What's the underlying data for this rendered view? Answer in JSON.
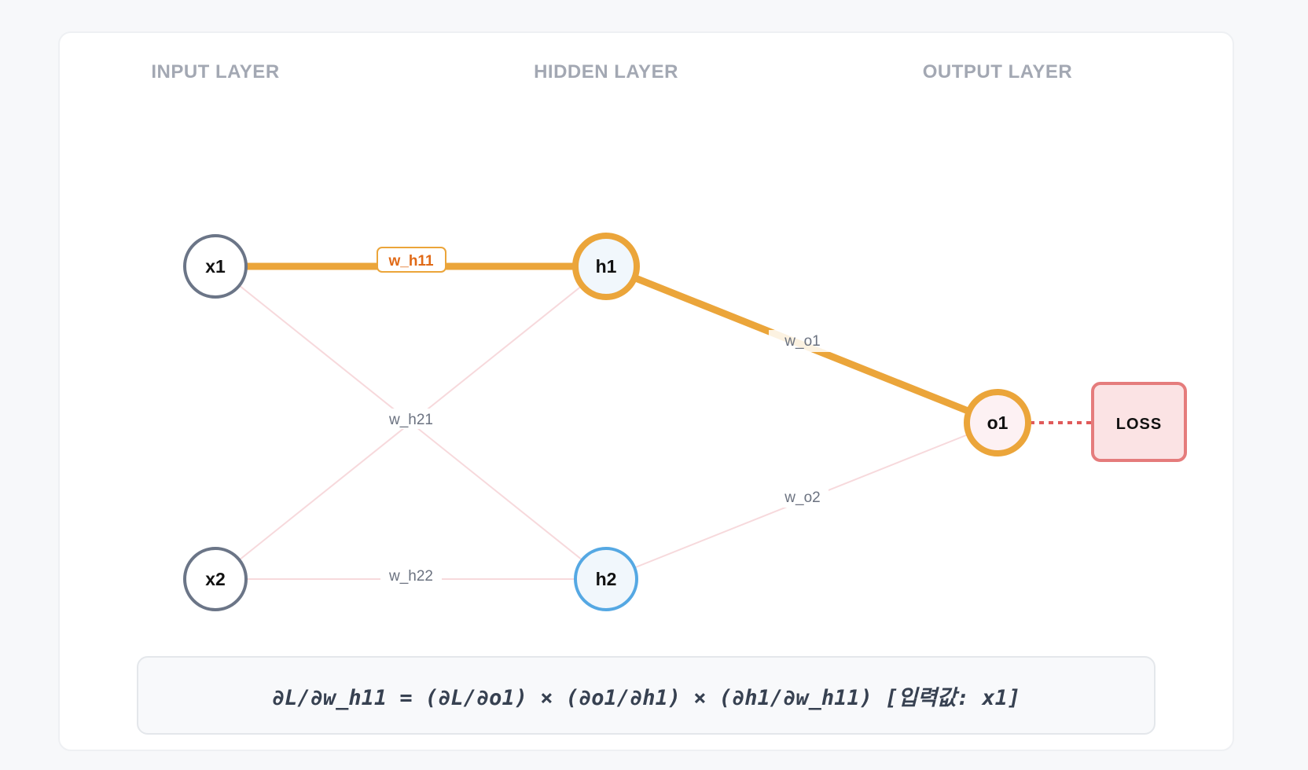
{
  "layers": {
    "input": "INPUT LAYER",
    "hidden": "HIDDEN LAYER",
    "output": "OUTPUT LAYER"
  },
  "nodes": {
    "x1": "x1",
    "x2": "x2",
    "h1": "h1",
    "h2": "h2",
    "o1": "o1",
    "loss": "LOSS"
  },
  "weights": {
    "w_h11": "w_h11",
    "w_h21": "w_h21",
    "w_h22": "w_h22",
    "w_o1": "w_o1",
    "w_o2": "w_o2"
  },
  "formula": "∂L/∂w_h11 = (∂L/∂o1) × (∂o1/∂h1) × (∂h1/∂w_h11) [입력값: x1]",
  "colors": {
    "active_path": "#eba53a",
    "active_label": "#e06a17",
    "inactive_edge": "#f7d9dc",
    "input_node_stroke": "#6b7587",
    "h2_stroke": "#55a8e3",
    "node_fill": "#f1f7fc",
    "o1_fill": "#fdf1f3",
    "loss_stroke": "#e57c7c",
    "loss_fill": "#fbe3e4",
    "loss_link": "#e05a5a"
  }
}
